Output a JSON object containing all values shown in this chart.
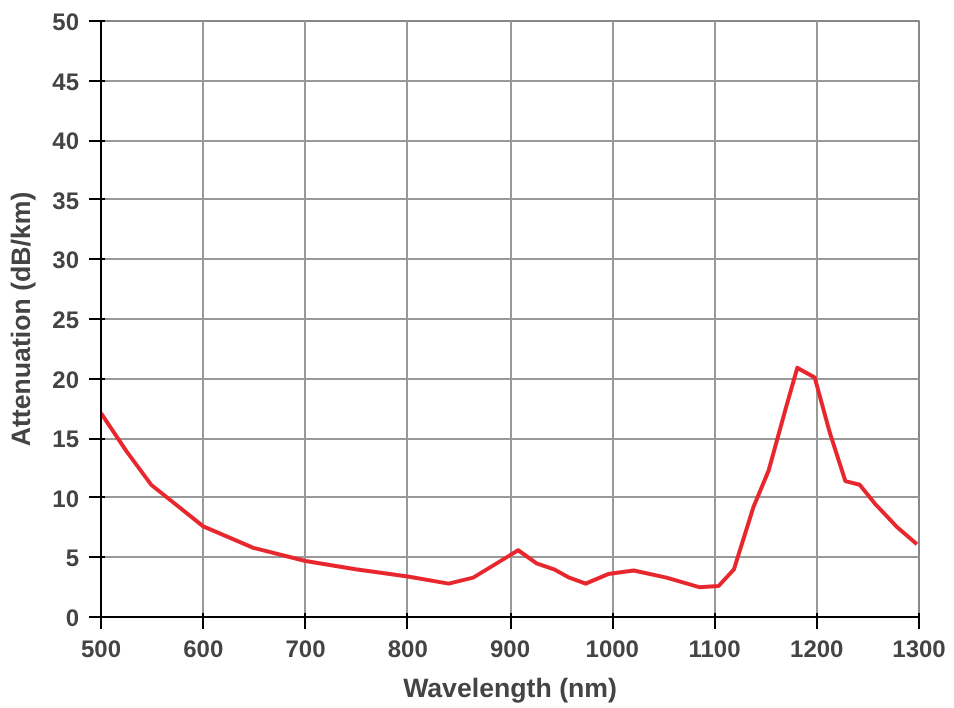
{
  "chart_data": {
    "type": "line",
    "xlabel": "Wavelength (nm)",
    "ylabel": "Attenuation (dB/km)",
    "x": [
      500,
      525,
      549,
      600,
      649,
      700,
      749,
      800,
      840,
      864,
      908,
      926,
      943,
      958,
      974,
      996,
      1021,
      1053,
      1085,
      1104,
      1119,
      1138,
      1153,
      1170,
      1181,
      1198,
      1213,
      1228,
      1242,
      1257,
      1279,
      1298
    ],
    "series": [
      {
        "color": "#e8262d",
        "values": [
          17.1,
          13.9,
          11.1,
          7.6,
          5.8,
          4.7,
          4.0,
          3.4,
          2.8,
          3.3,
          5.6,
          4.5,
          4.0,
          3.3,
          2.8,
          3.6,
          3.9,
          3.3,
          2.5,
          2.6,
          4.0,
          9.2,
          12.3,
          17.6,
          20.9,
          20.1,
          15.4,
          11.4,
          11.1,
          9.5,
          7.5,
          6.1
        ]
      }
    ],
    "xlim": [
      500,
      1300
    ],
    "xticks": [
      500,
      600,
      700,
      800,
      900,
      1000,
      1100,
      1200,
      1300
    ],
    "ylim": [
      0,
      50
    ],
    "yticks": [
      0,
      5,
      10,
      15,
      20,
      25,
      30,
      35,
      40,
      45,
      50
    ],
    "grid": true,
    "marker": "none",
    "line_style": "solid"
  }
}
